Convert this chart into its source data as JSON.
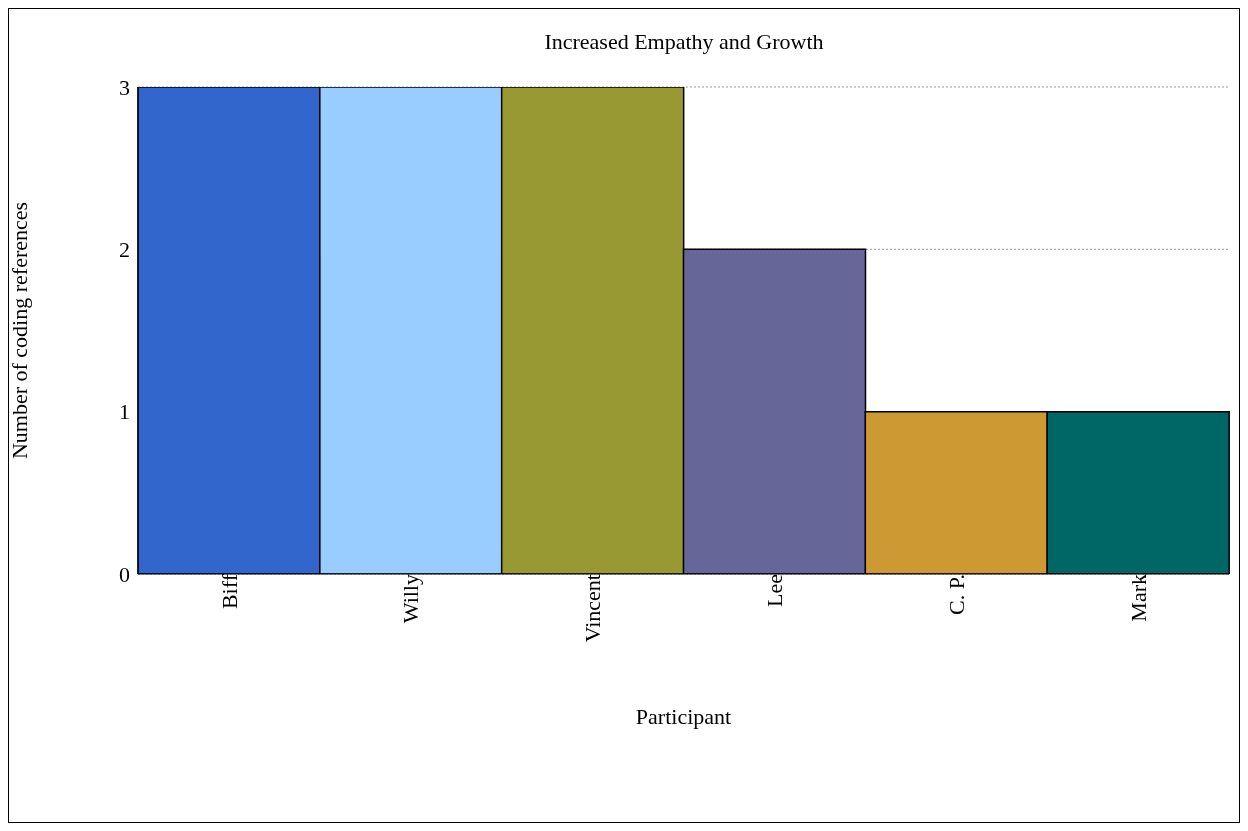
{
  "chart_data": {
    "type": "bar",
    "title": "Increased Empathy and Growth",
    "xlabel": "Participant",
    "ylabel": "Number of coding references",
    "categories": [
      "Biff",
      "Willy",
      "Vincent",
      "Lee",
      "C. P.",
      "Mark"
    ],
    "values": [
      3,
      3,
      3,
      2,
      1,
      1
    ],
    "colors": [
      "#3366cc",
      "#99ccff",
      "#999933",
      "#666699",
      "#cc9933",
      "#006666"
    ],
    "ylim": [
      0,
      3
    ],
    "yticks": [
      0,
      1,
      2,
      3
    ],
    "grid": "y"
  }
}
